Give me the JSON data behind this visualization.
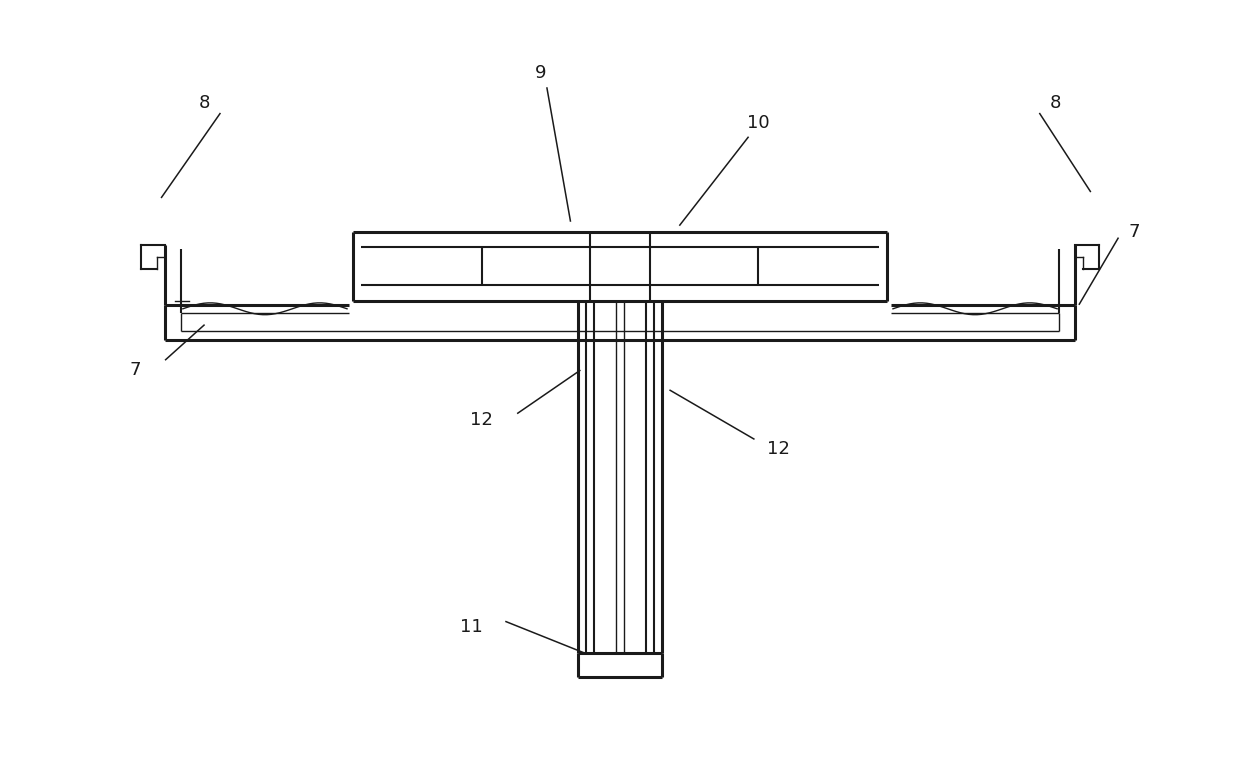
{
  "bg_color": "#ffffff",
  "line_color": "#1a1a1a",
  "lw_thick": 2.2,
  "lw_mid": 1.5,
  "lw_thin": 1.0,
  "fig_width": 12.4,
  "fig_height": 7.6,
  "dpi": 100
}
